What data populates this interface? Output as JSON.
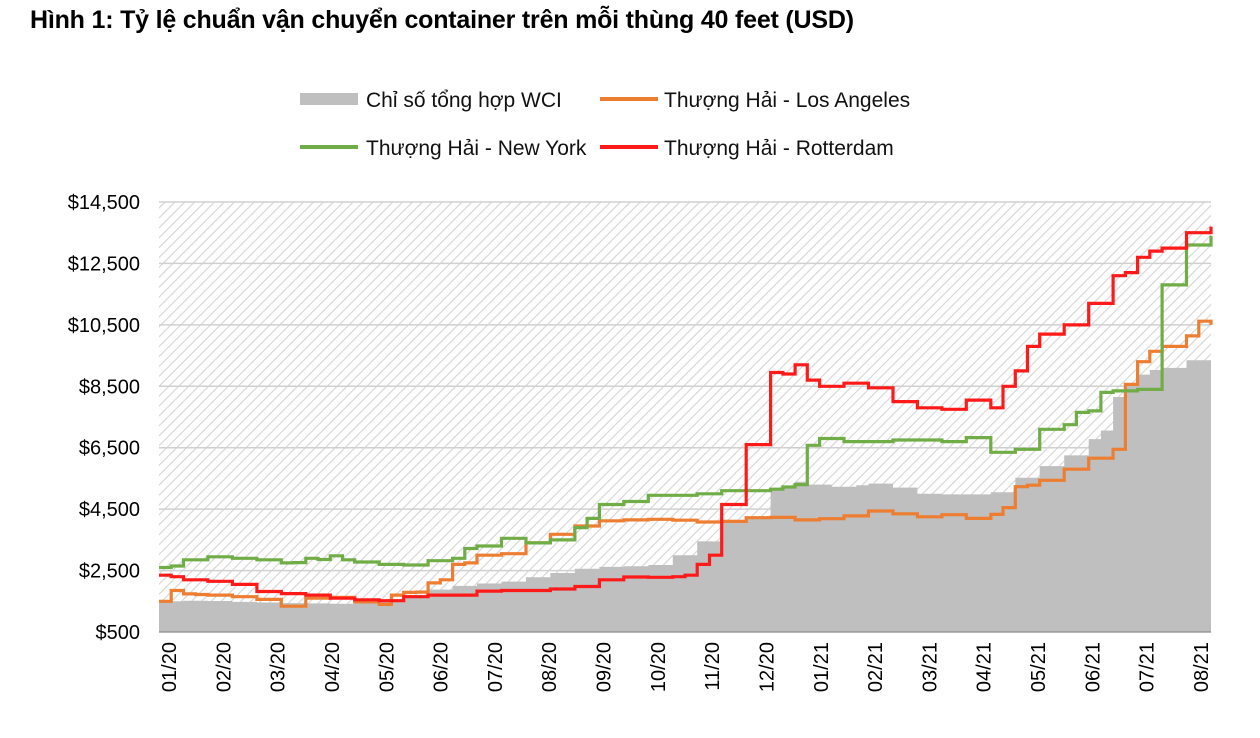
{
  "title": "Hình 1: Tỷ lệ chuẩn vận chuyển container trên mỗi thùng 40 feet (USD)",
  "chart_data": {
    "type": "line",
    "title": "Hình 1: Tỷ lệ chuẩn vận chuyển container trên mỗi thùng 40 feet (USD)",
    "xlabel": "",
    "ylabel": "",
    "ylim": [
      500,
      14500
    ],
    "y_ticks": [
      "$500",
      "$2,500",
      "$4,500",
      "$6,500",
      "$8,500",
      "$10,500",
      "$12,500",
      "$14,500"
    ],
    "y_tick_values": [
      500,
      2500,
      4500,
      6500,
      8500,
      10500,
      12500,
      14500
    ],
    "x_ticks": [
      "01/20",
      "02/20",
      "03/20",
      "04/20",
      "05/20",
      "06/20",
      "07/20",
      "08/20",
      "09/20",
      "10/20",
      "11/20",
      "12/20",
      "01/21",
      "02/21",
      "03/21",
      "04/21",
      "05/21",
      "06/21",
      "07/21",
      "08/21"
    ],
    "x_domain_weeks": [
      0,
      86
    ],
    "grid": true,
    "legend_position": "top",
    "colors": {
      "wci": "#bfbfbf",
      "la": "#ed7d31",
      "ny": "#70ad47",
      "rotterdam": "#ff1a1a",
      "hatch": "#d9d9d9",
      "grid": "#d0d0d0"
    },
    "series": [
      {
        "name": "Chỉ số tổng hợp WCI",
        "type": "area",
        "color": "#bfbfbf",
        "x": [
          0,
          2,
          4,
          6,
          8,
          10,
          12,
          14,
          16,
          18,
          20,
          22,
          24,
          26,
          28,
          30,
          32,
          34,
          36,
          38,
          40,
          42,
          44,
          46,
          48,
          49,
          50,
          51,
          52,
          53,
          54,
          55,
          56,
          57,
          58,
          60,
          62,
          64,
          66,
          68,
          70,
          72,
          74,
          76,
          77,
          78,
          79,
          80,
          81,
          82,
          84,
          86
        ],
        "values": [
          1500,
          1520,
          1510,
          1480,
          1460,
          1440,
          1430,
          1420,
          1440,
          1560,
          1700,
          1880,
          2000,
          2080,
          2140,
          2280,
          2420,
          2560,
          2620,
          2640,
          2680,
          3000,
          3450,
          4150,
          4230,
          4260,
          5160,
          5220,
          5390,
          5300,
          5300,
          5230,
          5230,
          5280,
          5330,
          5200,
          5000,
          4980,
          4980,
          5050,
          5520,
          5900,
          6250,
          6780,
          7060,
          8150,
          8520,
          8880,
          9030,
          9100,
          9350,
          9500
        ]
      },
      {
        "name": "Thượng Hải - Los Angeles",
        "type": "line",
        "color": "#ed7d31",
        "x": [
          0,
          1,
          2,
          3,
          4,
          6,
          8,
          10,
          12,
          14,
          16,
          18,
          19,
          20,
          21,
          22,
          23,
          24,
          25,
          26,
          28,
          30,
          32,
          34,
          36,
          38,
          40,
          42,
          44,
          46,
          48,
          50,
          52,
          54,
          56,
          58,
          60,
          62,
          64,
          66,
          68,
          69,
          70,
          71,
          72,
          74,
          76,
          78,
          79,
          80,
          81,
          82,
          84,
          85,
          86
        ],
        "values": [
          1500,
          1850,
          1740,
          1720,
          1700,
          1650,
          1560,
          1340,
          1600,
          1630,
          1480,
          1400,
          1700,
          1790,
          1800,
          2100,
          2200,
          2700,
          2750,
          3000,
          3050,
          3400,
          3680,
          3950,
          4120,
          4150,
          4170,
          4140,
          4080,
          4100,
          4220,
          4230,
          4150,
          4190,
          4280,
          4440,
          4350,
          4250,
          4320,
          4200,
          4330,
          4550,
          5230,
          5280,
          5440,
          5800,
          6160,
          6450,
          8560,
          9300,
          9640,
          9800,
          10140,
          10620,
          10500
        ]
      },
      {
        "name": "Thượng Hải - New York",
        "type": "line",
        "color": "#70ad47",
        "x": [
          0,
          1,
          2,
          4,
          6,
          8,
          10,
          11,
          12,
          13,
          14,
          15,
          16,
          18,
          20,
          22,
          24,
          25,
          26,
          28,
          30,
          32,
          34,
          35,
          36,
          38,
          40,
          42,
          44,
          46,
          48,
          50,
          51,
          52,
          53,
          54,
          56,
          58,
          60,
          62,
          64,
          66,
          68,
          70,
          72,
          74,
          75,
          76,
          77,
          78,
          80,
          82,
          84,
          86
        ],
        "values": [
          2600,
          2650,
          2850,
          2950,
          2900,
          2850,
          2750,
          2760,
          2900,
          2860,
          2980,
          2850,
          2780,
          2700,
          2680,
          2820,
          2900,
          3220,
          3300,
          3550,
          3400,
          3500,
          3900,
          4200,
          4650,
          4750,
          4950,
          4950,
          5000,
          5100,
          5100,
          5150,
          5220,
          5300,
          6580,
          6800,
          6700,
          6700,
          6750,
          6750,
          6700,
          6830,
          6350,
          6450,
          7100,
          7250,
          7650,
          7700,
          8300,
          8350,
          8400,
          11800,
          13100,
          13400
        ]
      },
      {
        "name": "Thượng Hải - Rotterdam",
        "type": "line",
        "color": "#ff1a1a",
        "x": [
          0,
          1,
          2,
          4,
          6,
          8,
          10,
          12,
          14,
          16,
          18,
          20,
          22,
          24,
          26,
          28,
          30,
          32,
          34,
          36,
          38,
          40,
          42,
          43,
          44,
          45,
          46,
          48,
          50,
          51,
          52,
          53,
          54,
          56,
          58,
          60,
          62,
          64,
          66,
          68,
          69,
          70,
          71,
          72,
          74,
          75,
          76,
          78,
          79,
          80,
          81,
          82,
          84,
          86
        ],
        "values": [
          2350,
          2300,
          2200,
          2150,
          2050,
          1820,
          1750,
          1700,
          1600,
          1550,
          1520,
          1650,
          1700,
          1700,
          1830,
          1850,
          1850,
          1900,
          1980,
          2200,
          2290,
          2280,
          2300,
          2350,
          2700,
          3000,
          4650,
          6600,
          8950,
          8900,
          9200,
          8700,
          8500,
          8600,
          8450,
          8000,
          7800,
          7750,
          8050,
          7800,
          8500,
          9000,
          9800,
          10200,
          10500,
          10500,
          11200,
          12100,
          12200,
          12700,
          12900,
          13000,
          13500,
          13700
        ]
      }
    ]
  }
}
